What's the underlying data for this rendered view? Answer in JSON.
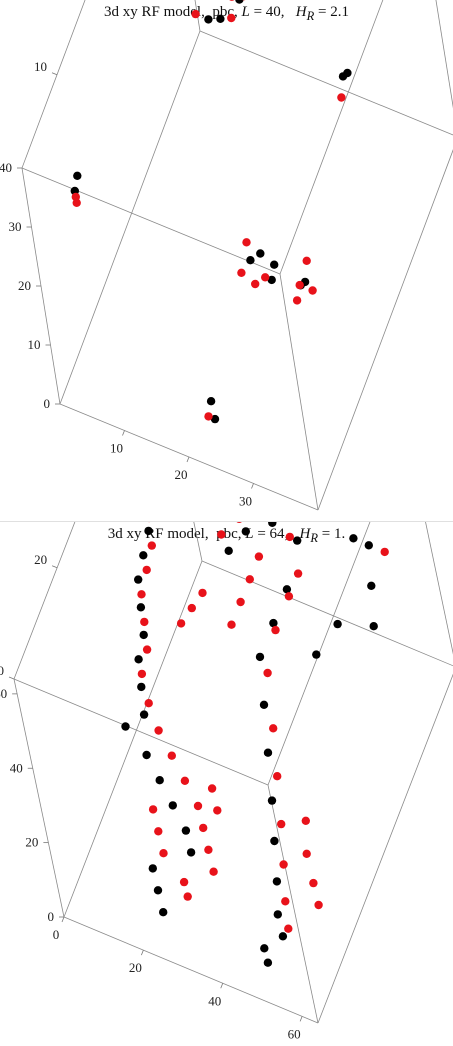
{
  "colors": {
    "black": "#000000",
    "red": "#e8121a",
    "frame": "#8a8a8a"
  },
  "panels": [
    {
      "title_prefix": "3d xy RF model,  pbc, ",
      "title_L_label": "L",
      "title_L_value": " = 40,   ",
      "title_H_label": "H",
      "title_H_sub": "R",
      "title_H_value": " = 2.1",
      "chart_data": {
        "type": "scatter",
        "title": "3d xy RF model,  pbc, L = 40,   HR = 2.1",
        "xlim": [
          0,
          40
        ],
        "ylim": [
          0,
          40
        ],
        "zlim": [
          0,
          40
        ],
        "x_ticks": [
          "10",
          "20",
          "30"
        ],
        "y_ticks": [
          "10",
          "20",
          "30",
          "40"
        ],
        "z_ticks": [
          "0",
          "10",
          "20",
          "30",
          "40"
        ],
        "series": [
          {
            "color": "black",
            "points": [
              [
                10,
                28,
                34
              ],
              [
                12,
                27,
                35
              ],
              [
                14,
                26,
                36
              ],
              [
                16,
                26,
                37
              ],
              [
                18,
                27,
                37
              ],
              [
                19,
                26,
                36
              ],
              [
                17,
                24,
                35
              ],
              [
                15,
                24,
                34
              ],
              [
                11,
                30,
                34
              ],
              [
                9,
                31,
                34
              ],
              [
                36,
                34,
                37
              ],
              [
                36,
                35,
                37
              ],
              [
                4,
                5,
                30
              ],
              [
                4,
                6,
                31
              ],
              [
                30,
                32,
                19
              ],
              [
                30,
                31,
                20
              ],
              [
                34,
                12,
                17
              ],
              [
                34,
                11,
                18
              ],
              [
                23,
                15,
                11
              ],
              [
                24,
                16,
                11
              ],
              [
                26,
                16,
                10
              ],
              [
                26,
                15,
                9
              ],
              [
                21,
                5,
                2
              ],
              [
                22,
                4,
                1
              ]
            ]
          },
          {
            "color": "red",
            "points": [
              [
                8,
                29,
                34
              ],
              [
                9,
                30,
                33
              ],
              [
                11,
                29,
                32
              ],
              [
                13,
                28,
                32
              ],
              [
                15,
                28,
                33
              ],
              [
                17,
                27,
                34
              ],
              [
                19,
                27,
                35
              ],
              [
                18,
                25,
                34
              ],
              [
                13,
                24,
                34
              ],
              [
                12,
                30,
                35
              ],
              [
                4,
                5,
                29
              ],
              [
                4,
                5,
                28
              ],
              [
                30,
                30,
                18
              ],
              [
                33,
                12,
                16
              ],
              [
                34,
                13,
                19
              ],
              [
                33,
                11,
                15
              ],
              [
                35,
                12,
                16
              ],
              [
                22,
                14,
                10
              ],
              [
                24,
                14,
                9
              ],
              [
                25,
                15,
                9
              ],
              [
                22,
                16,
                12
              ],
              [
                21,
                4,
                1
              ]
            ]
          }
        ]
      }
    },
    {
      "title_prefix": "3d xy RF model,  pbc, ",
      "title_L_label": "L",
      "title_L_value": " = 64,   ",
      "title_H_label": "H",
      "title_H_sub": "R",
      "title_H_value": " = 1.",
      "chart_data": {
        "type": "scatter",
        "title": "3d xy RF model,  pbc, L = 64,   HR = 1.",
        "xlim": [
          0,
          64
        ],
        "ylim": [
          0,
          64
        ],
        "zlim": [
          0,
          64
        ],
        "x_ticks": [
          "0",
          "20",
          "40",
          "60"
        ],
        "y_ticks": [
          "0",
          "20",
          "40",
          "60"
        ],
        "z_ticks": [
          "0",
          "20",
          "40",
          "60"
        ],
        "series": [
          {
            "color": "black",
            "points": [
              [
                8,
                42,
                52
              ],
              [
                9,
                40,
                48
              ],
              [
                8,
                38,
                44
              ],
              [
                7,
                36,
                40
              ],
              [
                8,
                34,
                36
              ],
              [
                9,
                32,
                32
              ],
              [
                8,
                30,
                28
              ],
              [
                9,
                28,
                24
              ],
              [
                10,
                26,
                20
              ],
              [
                6,
                24,
                18
              ],
              [
                12,
                22,
                16
              ],
              [
                16,
                20,
                14
              ],
              [
                20,
                18,
                12
              ],
              [
                24,
                16,
                10
              ],
              [
                26,
                14,
                8
              ],
              [
                30,
                40,
                52
              ],
              [
                34,
                42,
                56
              ],
              [
                40,
                44,
                58
              ],
              [
                44,
                46,
                52
              ],
              [
                42,
                42,
                44
              ],
              [
                40,
                38,
                40
              ],
              [
                38,
                34,
                36
              ],
              [
                40,
                30,
                30
              ],
              [
                42,
                26,
                24
              ],
              [
                44,
                22,
                18
              ],
              [
                46,
                18,
                14
              ],
              [
                48,
                14,
                10
              ],
              [
                50,
                10,
                8
              ],
              [
                52,
                8,
                6
              ],
              [
                56,
                50,
                52
              ],
              [
                58,
                52,
                48
              ],
              [
                60,
                48,
                44
              ],
              [
                62,
                44,
                40
              ],
              [
                54,
                42,
                40
              ],
              [
                50,
                38,
                36
              ],
              [
                20,
                8,
                10
              ],
              [
                22,
                6,
                8
              ],
              [
                24,
                4,
                6
              ],
              [
                48,
                6,
                4
              ],
              [
                50,
                4,
                4
              ]
            ]
          },
          {
            "color": "red",
            "points": [
              [
                9,
                41,
                50
              ],
              [
                10,
                39,
                46
              ],
              [
                9,
                37,
                42
              ],
              [
                8,
                35,
                38
              ],
              [
                9,
                33,
                34
              ],
              [
                10,
                31,
                30
              ],
              [
                9,
                29,
                26
              ],
              [
                11,
                27,
                22
              ],
              [
                14,
                25,
                19
              ],
              [
                18,
                23,
                17
              ],
              [
                22,
                21,
                15
              ],
              [
                26,
                19,
                13
              ],
              [
                28,
                17,
                11
              ],
              [
                30,
                15,
                9
              ],
              [
                32,
                13,
                7
              ],
              [
                28,
                41,
                54
              ],
              [
                32,
                43,
                57
              ],
              [
                36,
                45,
                59
              ],
              [
                38,
                40,
                54
              ],
              [
                36,
                38,
                50
              ],
              [
                34,
                36,
                46
              ],
              [
                32,
                34,
                42
              ],
              [
                24,
                36,
                44
              ],
              [
                22,
                34,
                42
              ],
              [
                20,
                32,
                40
              ],
              [
                44,
                44,
                56
              ],
              [
                46,
                42,
                50
              ],
              [
                44,
                40,
                46
              ],
              [
                42,
                36,
                42
              ],
              [
                41,
                32,
                36
              ],
              [
                43,
                28,
                28
              ],
              [
                45,
                24,
                22
              ],
              [
                47,
                20,
                16
              ],
              [
                49,
                16,
                12
              ],
              [
                51,
                12,
                9
              ],
              [
                53,
                9,
                7
              ],
              [
                54,
                20,
                20
              ],
              [
                56,
                16,
                18
              ],
              [
                58,
                14,
                14
              ],
              [
                60,
                12,
                12
              ],
              [
                20,
                12,
                14
              ],
              [
                22,
                10,
                12
              ],
              [
                18,
                14,
                16
              ],
              [
                26,
                10,
                6
              ],
              [
                28,
                8,
                6
              ],
              [
                58,
                60,
                60
              ],
              [
                59,
                60,
                60
              ],
              [
                62,
                52,
                48
              ],
              [
                30,
                20,
                18
              ],
              [
                32,
                18,
                16
              ]
            ]
          }
        ]
      }
    }
  ]
}
